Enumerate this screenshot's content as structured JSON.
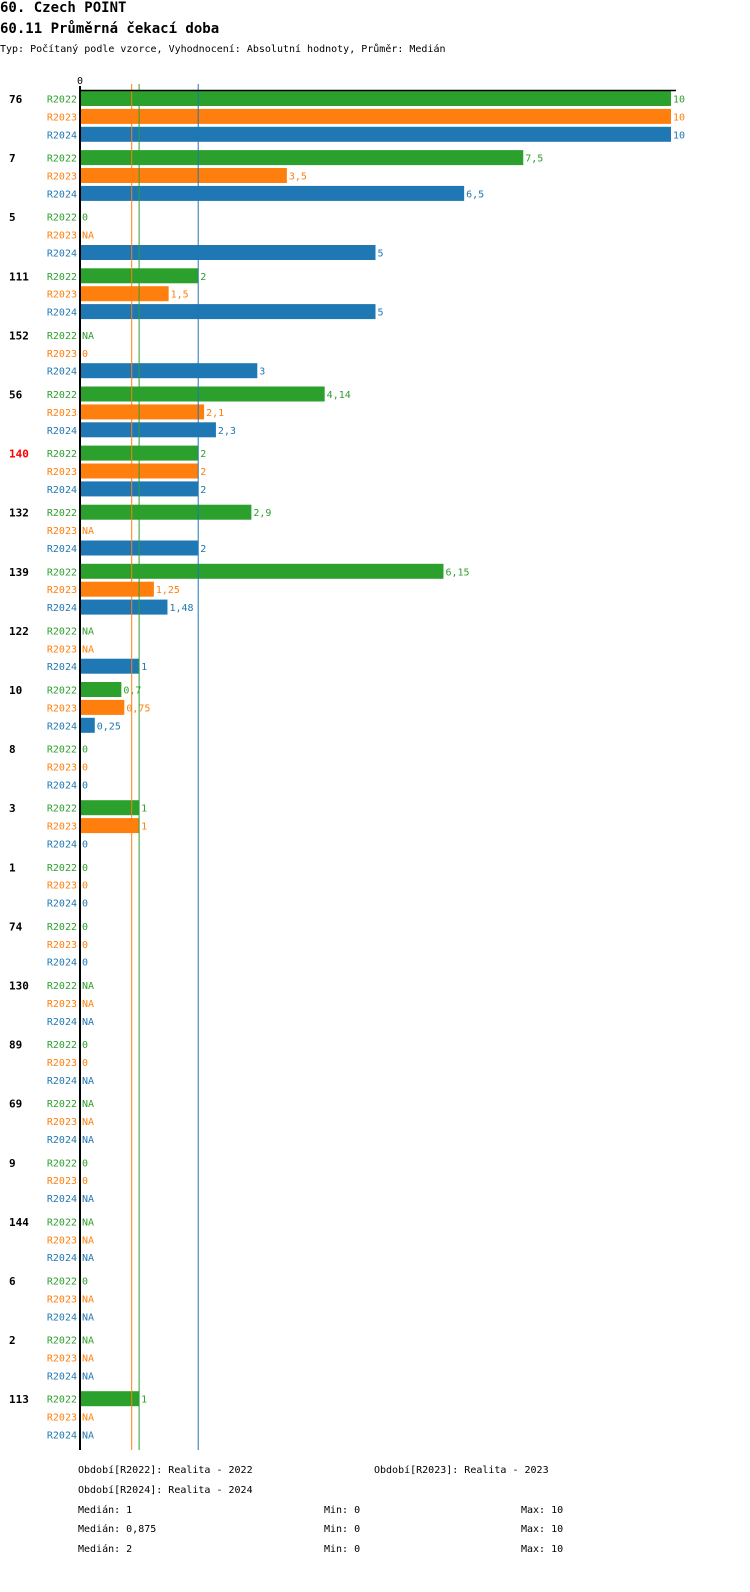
{
  "chart_data": {
    "type": "bar",
    "orientation": "horizontal",
    "title": "60. Czech POINT",
    "subtitle": "60.11 Průměrná čekací doba",
    "info": "Typ: Počítaný podle vzorce, Vyhodnocení: Absolutní hodnoty, Průměr: Medián",
    "axis_zero_label": "0",
    "xlim": [
      0,
      10
    ],
    "highlight_category": "140",
    "colors": {
      "R2022": "#2ca02c",
      "R2023": "#ff7f0e",
      "R2024": "#1f77b4",
      "highlight": "#ff0000"
    },
    "series": [
      {
        "name": "R2022",
        "label": "Období[R2022]: Realita - 2022",
        "median": 1,
        "median_text": "Medián: 1",
        "min_text": "Min: 0",
        "max_text": "Max: 10"
      },
      {
        "name": "R2023",
        "label": "Období[R2023]: Realita - 2023",
        "median": 0.875,
        "median_text": "Medián: 0,875",
        "min_text": "Min: 0",
        "max_text": "Max: 10"
      },
      {
        "name": "R2024",
        "label": "Období[R2024]: Realita - 2024",
        "median": 2,
        "median_text": "Medián: 2",
        "min_text": "Min: 0",
        "max_text": "Max: 10"
      }
    ],
    "categories": [
      {
        "name": "76",
        "values": [
          10,
          10,
          10
        ],
        "labels": [
          "10",
          "10",
          "10"
        ]
      },
      {
        "name": "7",
        "values": [
          7.5,
          3.5,
          6.5
        ],
        "labels": [
          "7,5",
          "3,5",
          "6,5"
        ]
      },
      {
        "name": "5",
        "values": [
          0,
          null,
          5
        ],
        "labels": [
          "0",
          "NA",
          "5"
        ]
      },
      {
        "name": "111",
        "values": [
          2,
          1.5,
          5
        ],
        "labels": [
          "2",
          "1,5",
          "5"
        ]
      },
      {
        "name": "152",
        "values": [
          null,
          0,
          3
        ],
        "labels": [
          "NA",
          "0",
          "3"
        ]
      },
      {
        "name": "56",
        "values": [
          4.14,
          2.1,
          2.3
        ],
        "labels": [
          "4,14",
          "2,1",
          "2,3"
        ]
      },
      {
        "name": "140",
        "values": [
          2,
          2,
          2
        ],
        "labels": [
          "2",
          "2",
          "2"
        ]
      },
      {
        "name": "132",
        "values": [
          2.9,
          null,
          2
        ],
        "labels": [
          "2,9",
          "NA",
          "2"
        ]
      },
      {
        "name": "139",
        "values": [
          6.15,
          1.25,
          1.48
        ],
        "labels": [
          "6,15",
          "1,25",
          "1,48"
        ]
      },
      {
        "name": "122",
        "values": [
          null,
          null,
          1
        ],
        "labels": [
          "NA",
          "NA",
          "1"
        ]
      },
      {
        "name": "10",
        "values": [
          0.7,
          0.75,
          0.25
        ],
        "labels": [
          "0,7",
          "0,75",
          "0,25"
        ]
      },
      {
        "name": "8",
        "values": [
          0,
          0,
          0
        ],
        "labels": [
          "0",
          "0",
          "0"
        ]
      },
      {
        "name": "3",
        "values": [
          1,
          1,
          0
        ],
        "labels": [
          "1",
          "1",
          "0"
        ]
      },
      {
        "name": "1",
        "values": [
          0,
          0,
          0
        ],
        "labels": [
          "0",
          "0",
          "0"
        ]
      },
      {
        "name": "74",
        "values": [
          0,
          0,
          0
        ],
        "labels": [
          "0",
          "0",
          "0"
        ]
      },
      {
        "name": "130",
        "values": [
          null,
          null,
          null
        ],
        "labels": [
          "NA",
          "NA",
          "NA"
        ]
      },
      {
        "name": "89",
        "values": [
          0,
          0,
          null
        ],
        "labels": [
          "0",
          "0",
          "NA"
        ]
      },
      {
        "name": "69",
        "values": [
          null,
          null,
          null
        ],
        "labels": [
          "NA",
          "NA",
          "NA"
        ]
      },
      {
        "name": "9",
        "values": [
          0,
          0,
          null
        ],
        "labels": [
          "0",
          "0",
          "NA"
        ]
      },
      {
        "name": "144",
        "values": [
          null,
          null,
          null
        ],
        "labels": [
          "NA",
          "NA",
          "NA"
        ]
      },
      {
        "name": "6",
        "values": [
          0,
          null,
          null
        ],
        "labels": [
          "0",
          "NA",
          "NA"
        ]
      },
      {
        "name": "2",
        "values": [
          null,
          null,
          null
        ],
        "labels": [
          "NA",
          "NA",
          "NA"
        ]
      },
      {
        "name": "113",
        "values": [
          1,
          null,
          null
        ],
        "labels": [
          "1",
          "NA",
          "NA"
        ]
      }
    ]
  }
}
